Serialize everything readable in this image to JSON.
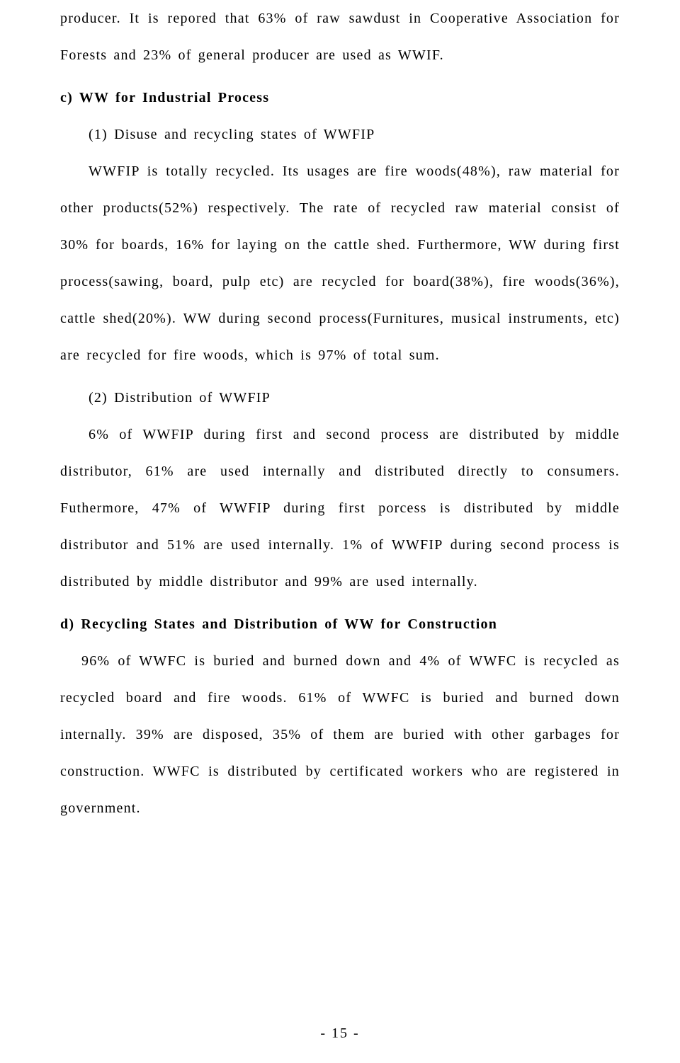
{
  "p1": "producer. It is repored that 63% of raw sawdust in Cooperative Association for Forests and 23% of general producer are used as WWIF.",
  "h_c": "c) WW for Industrial Process",
  "sub1": "(1) Disuse and recycling states of WWFIP",
  "p2": "WWFIP is totally recycled. Its usages are fire woods(48%), raw material for other products(52%) respectively. The rate of recycled raw material consist of 30% for boards, 16% for laying on the cattle shed. Furthermore, WW during first process(sawing, board, pulp etc) are recycled for board(38%), fire woods(36%), cattle shed(20%). WW during second process(Furnitures, musical instruments, etc) are recycled for fire woods, which is 97% of total sum.",
  "sub2": "(2) Distribution of WWFIP",
  "p3": "6% of WWFIP during first and second process are distributed by middle distributor, 61% are used internally and distributed directly to consumers. Futhermore, 47% of WWFIP during first porcess is distributed by middle distributor and 51% are used internally. 1% of WWFIP during second process is distributed by middle distributor and 99% are used internally.",
  "h_d": "d) Recycling States and Distribution of WW for Construction",
  "p4": "96% of WWFC is buried and burned down and 4% of WWFC is recycled as recycled board and fire woods. 61% of WWFC is buried and burned down internally. 39% are disposed, 35% of them are buried with other garbages for construction. WWFC is distributed by certificated workers who are registered in government.",
  "pagenum": "- 15 -"
}
